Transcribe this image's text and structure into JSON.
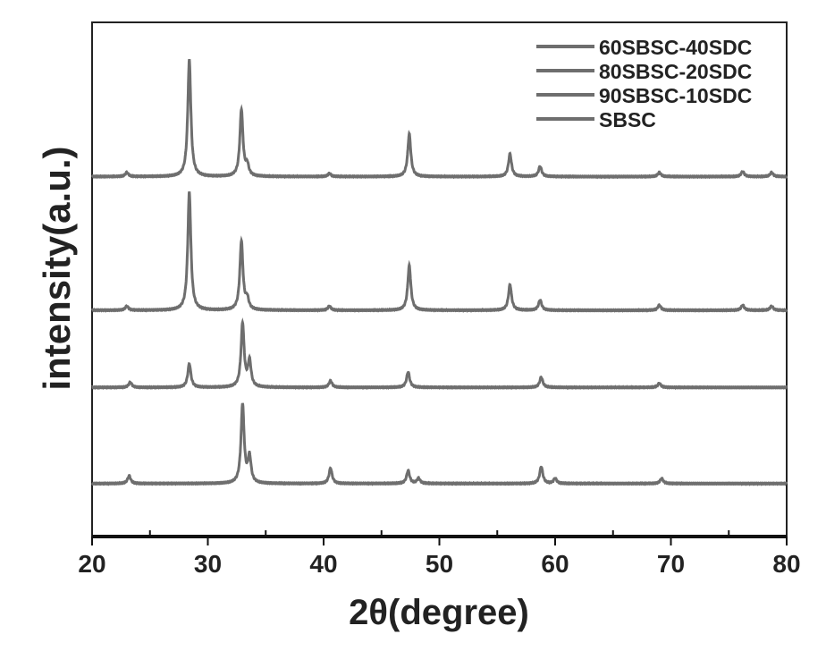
{
  "chart_data": {
    "type": "line",
    "title": "",
    "xlabel": "2θ(degree)",
    "ylabel": "intensity(a.u.)",
    "xlim": [
      20,
      80
    ],
    "ylim": [
      0,
      100
    ],
    "xticks": [
      "20",
      "30",
      "40",
      "50",
      "60",
      "70",
      "80"
    ],
    "grid": false,
    "legend_placement": "top-right",
    "line_color": "#6e6e6e",
    "peak_width_deg": 0.16,
    "series": [
      {
        "name": "60SBSC-40SDC",
        "baseline": 70,
        "peaks": [
          [
            23.0,
            0.8
          ],
          [
            28.4,
            22.7
          ],
          [
            32.9,
            13
          ],
          [
            33.4,
            2
          ],
          [
            40.5,
            0.6
          ],
          [
            47.4,
            8.3
          ],
          [
            56.1,
            4.4
          ],
          [
            58.7,
            2
          ],
          [
            69.0,
            0.8
          ],
          [
            76.2,
            1
          ],
          [
            78.7,
            0.8
          ]
        ]
      },
      {
        "name": "80SBSC-20SDC",
        "baseline": 44,
        "peaks": [
          [
            23.0,
            0.8
          ],
          [
            28.4,
            23
          ],
          [
            32.9,
            13.4
          ],
          [
            33.4,
            2
          ],
          [
            40.5,
            0.8
          ],
          [
            47.4,
            8.7
          ],
          [
            56.1,
            5
          ],
          [
            58.7,
            2
          ],
          [
            69.0,
            1
          ],
          [
            76.2,
            1
          ],
          [
            78.7,
            0.8
          ]
        ]
      },
      {
        "name": "90SBSC-10SDC",
        "baseline": 29,
        "peaks": [
          [
            23.3,
            1
          ],
          [
            28.4,
            4.6
          ],
          [
            33.0,
            12.4
          ],
          [
            33.6,
            5
          ],
          [
            40.6,
            1.3
          ],
          [
            47.3,
            3
          ],
          [
            58.8,
            2
          ],
          [
            69.0,
            0.8
          ]
        ]
      },
      {
        "name": "SBSC",
        "baseline": 10.3,
        "peaks": [
          [
            23.2,
            1.5
          ],
          [
            33.0,
            15.4
          ],
          [
            33.6,
            5
          ],
          [
            40.6,
            3
          ],
          [
            47.3,
            2.5
          ],
          [
            48.2,
            1
          ],
          [
            58.8,
            3.3
          ],
          [
            60.0,
            1
          ],
          [
            69.2,
            1
          ]
        ]
      }
    ]
  }
}
